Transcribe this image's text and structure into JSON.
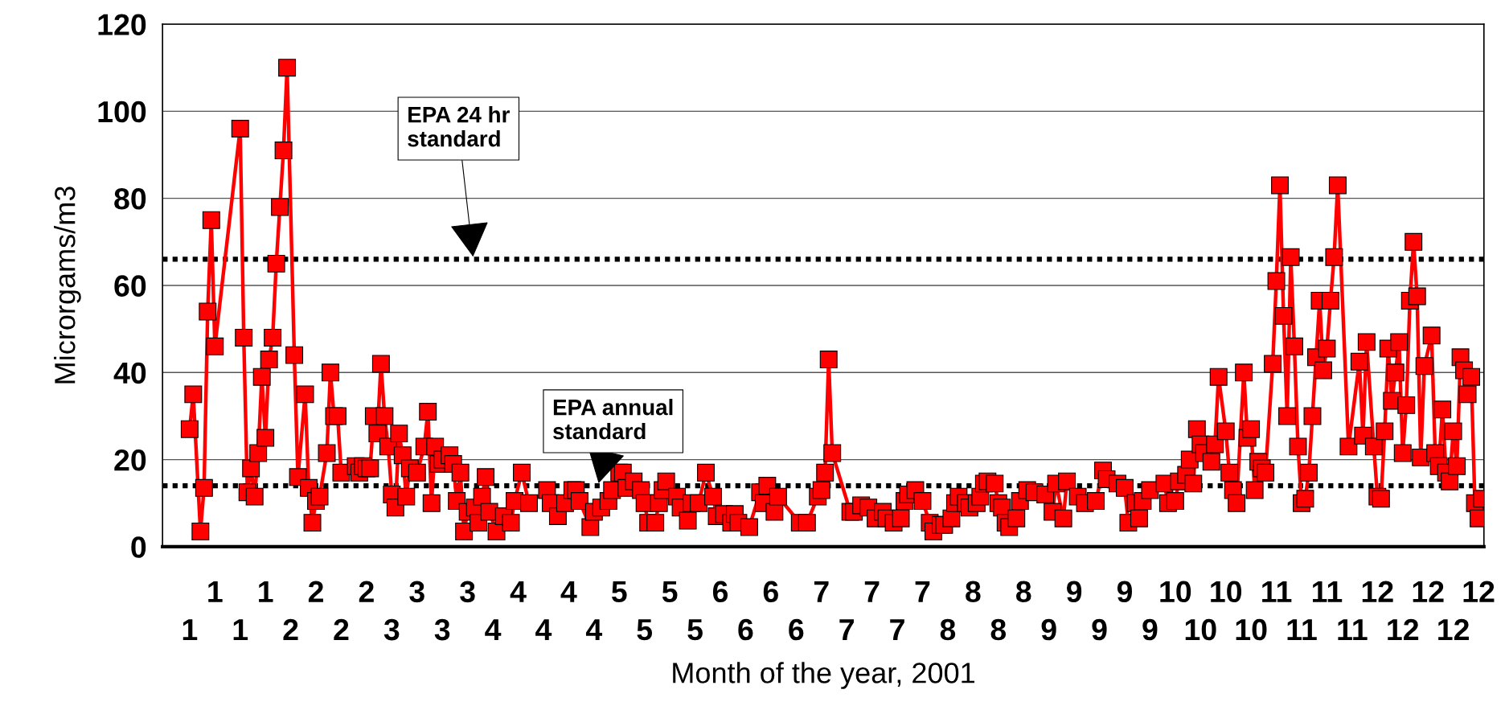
{
  "chart_data": {
    "type": "line",
    "xlabel": "Month of the year, 2001",
    "ylabel": "Microrgams/m3",
    "categories": [
      null,
      null,
      null,
      null,
      null,
      null,
      null,
      "1",
      null,
      null,
      null,
      null,
      null,
      null,
      "1",
      null,
      null,
      null,
      null,
      null,
      null,
      "1",
      null,
      null,
      null,
      null,
      null,
      null,
      "1",
      null,
      null,
      null,
      null,
      null,
      null,
      "2",
      null,
      null,
      null,
      null,
      null,
      null,
      "2",
      null,
      null,
      null,
      null,
      null,
      null,
      "2",
      null,
      null,
      null,
      null,
      null,
      null,
      "2",
      null,
      null,
      null,
      null,
      null,
      null,
      "3",
      null,
      null,
      null,
      null,
      null,
      null,
      "3",
      null,
      null,
      null,
      null,
      null,
      null,
      "3",
      null,
      null,
      null,
      null,
      null,
      null,
      "3",
      null,
      null,
      null,
      null,
      null,
      null,
      "4",
      null,
      null,
      null,
      null,
      null,
      null,
      "4",
      null,
      null,
      null,
      null,
      null,
      null,
      "4",
      null,
      null,
      null,
      null,
      null,
      null,
      "4",
      null,
      null,
      null,
      null,
      null,
      null,
      "4",
      null,
      null,
      null,
      null,
      null,
      null,
      "5",
      null,
      null,
      null,
      null,
      null,
      null,
      "5",
      null,
      null,
      null,
      null,
      null,
      null,
      "5",
      null,
      null,
      null,
      null,
      null,
      null,
      "5",
      null,
      null,
      null,
      null,
      null,
      null,
      "6",
      null,
      null,
      null,
      null,
      null,
      null,
      "6",
      null,
      null,
      null,
      null,
      null,
      null,
      "6",
      null,
      null,
      null,
      null,
      null,
      null,
      "6",
      null,
      null,
      null,
      null,
      null,
      null,
      "7",
      null,
      null,
      null,
      null,
      null,
      null,
      "7",
      null,
      null,
      null,
      null,
      null,
      null,
      "7",
      null,
      null,
      null,
      null,
      null,
      null,
      "7",
      null,
      null,
      null,
      null,
      null,
      null,
      "7",
      null,
      null,
      null,
      null,
      null,
      null,
      "8",
      null,
      null,
      null,
      null,
      null,
      null,
      "8",
      null,
      null,
      null,
      null,
      null,
      null,
      "8",
      null,
      null,
      null,
      null,
      null,
      null,
      "8",
      null,
      null,
      null,
      null,
      null,
      null,
      "9",
      null,
      null,
      null,
      null,
      null,
      null,
      "9",
      null,
      null,
      null,
      null,
      null,
      null,
      "9",
      null,
      null,
      null,
      null,
      null,
      null,
      "9",
      null,
      null,
      null,
      null,
      null,
      null,
      "9",
      null,
      null,
      null,
      null,
      null,
      null,
      "10",
      null,
      null,
      null,
      null,
      null,
      null,
      "10",
      null,
      null,
      null,
      null,
      null,
      null,
      "10",
      null,
      null,
      null,
      null,
      null,
      null,
      "10",
      null,
      null,
      null,
      null,
      null,
      null,
      "11",
      null,
      null,
      null,
      null,
      null,
      null,
      "11",
      null,
      null,
      null,
      null,
      null,
      null,
      "11",
      null,
      null,
      null,
      null,
      null,
      null,
      "11",
      null,
      null,
      null,
      null,
      null,
      null,
      "12",
      null,
      null,
      null,
      null,
      null,
      null,
      "12",
      null,
      null,
      null,
      null,
      null,
      null,
      "12",
      null,
      null,
      null,
      null,
      null,
      null,
      "12",
      null,
      null,
      null,
      null,
      null,
      null,
      "12",
      null
    ],
    "ylim": [
      0,
      120
    ],
    "yticks": [
      0,
      20,
      40,
      60,
      80,
      100,
      120
    ],
    "grid": "y",
    "marker": "square",
    "line_style": "solid",
    "ref_lines": [
      {
        "axis": "y",
        "value": 66,
        "label": "EPA 24 hr\nstandard",
        "color": "#000000",
        "line_style": "dotted"
      },
      {
        "axis": "y",
        "value": 14,
        "label": "EPA annual\nstandard",
        "color": "#000000",
        "line_style": "dotted"
      }
    ],
    "series": [
      {
        "color": "#ff0000",
        "values": [
          null,
          null,
          null,
          null,
          null,
          null,
          null,
          27,
          35,
          null,
          3.5,
          13.5,
          54,
          75,
          46,
          null,
          null,
          null,
          null,
          null,
          null,
          96,
          48,
          12.5,
          18,
          11.5,
          21.5,
          39,
          25,
          43,
          48,
          65,
          78,
          91,
          110,
          null,
          44,
          16,
          null,
          35,
          13.5,
          5.5,
          10.5,
          11.5,
          null,
          21.5,
          40,
          30,
          30,
          17,
          null,
          null,
          null,
          18.5,
          17,
          18.5,
          18,
          18,
          30,
          26,
          42,
          30,
          23,
          12,
          9,
          26,
          21,
          11.5,
          18,
          null,
          17,
          null,
          23,
          31,
          10,
          23,
          19,
          20,
          null,
          21,
          19,
          10.5,
          17,
          3.5,
          8,
          null,
          9,
          5.5,
          11.5,
          16,
          8,
          null,
          3.5,
          null,
          7,
          null,
          5.5,
          10.5,
          null,
          17,
          null,
          10,
          null,
          null,
          null,
          null,
          13,
          10,
          null,
          7,
          null,
          10,
          null,
          13,
          13,
          10.5,
          null,
          null,
          4.5,
          8,
          null,
          9,
          null,
          10.5,
          13,
          null,
          17,
          17,
          13.5,
          null,
          15,
          null,
          13,
          10,
          5.5,
          null,
          5.5,
          10,
          13,
          15,
          null,
          null,
          11.5,
          9,
          null,
          6,
          10,
          null,
          10,
          null,
          17,
          null,
          11.5,
          7,
          null,
          7.5,
          null,
          5.5,
          7.5,
          5.5,
          null,
          null,
          4.5,
          null,
          null,
          12.5,
          10,
          14,
          null,
          8,
          11.5,
          null,
          null,
          null,
          null,
          null,
          5.5,
          null,
          5.5,
          null,
          null,
          11.5,
          13,
          17,
          43,
          21.5,
          null,
          null,
          null,
          null,
          8,
          8,
          null,
          9.5,
          null,
          9,
          null,
          6.5,
          null,
          8,
          6.5,
          null,
          5.5,
          null,
          6.5,
          10.5,
          12,
          null,
          13,
          null,
          10.5,
          null,
          5.5,
          3.5,
          null,
          5,
          5,
          null,
          6.5,
          10,
          11.5,
          null,
          10,
          9,
          null,
          10,
          11.5,
          14.5,
          15,
          null,
          14.5,
          10,
          9,
          5.5,
          4.5,
          null,
          6.5,
          10.5,
          null,
          13,
          null,
          12.5,
          null,
          null,
          12,
          null,
          8,
          14.5,
          null,
          6.5,
          15,
          null,
          null,
          11.5,
          null,
          10,
          null,
          null,
          10.5,
          null,
          17.5,
          15.5,
          null,
          null,
          14.5,
          null,
          13.5,
          5.5,
          null,
          10,
          6.5,
          10.5,
          null,
          13,
          null,
          null,
          null,
          14.5,
          10,
          null,
          10.5,
          15,
          null,
          16.5,
          20,
          14.5,
          27,
          23.5,
          21.5,
          null,
          19.5,
          23.5,
          39,
          null,
          26.5,
          17,
          13,
          10,
          null,
          40,
          25,
          27,
          13,
          19.5,
          18,
          17,
          null,
          42,
          61,
          83,
          53,
          30,
          66.5,
          46,
          23,
          10,
          11,
          17,
          30,
          43.5,
          56.5,
          40.5,
          45.5,
          56.5,
          66.5,
          83,
          null,
          null,
          23,
          null,
          null,
          42.5,
          25.5,
          47,
          null,
          23,
          11.5,
          11,
          26.5,
          45.5,
          33.5,
          40,
          47,
          21.5,
          32.5,
          56.5,
          70,
          57.5,
          20.5,
          41.5,
          null,
          48.5,
          21.5,
          18.5,
          31.5,
          17,
          15,
          26.5,
          18.5,
          43.5,
          40.5,
          35,
          39,
          10,
          6.5,
          11
        ]
      }
    ]
  }
}
